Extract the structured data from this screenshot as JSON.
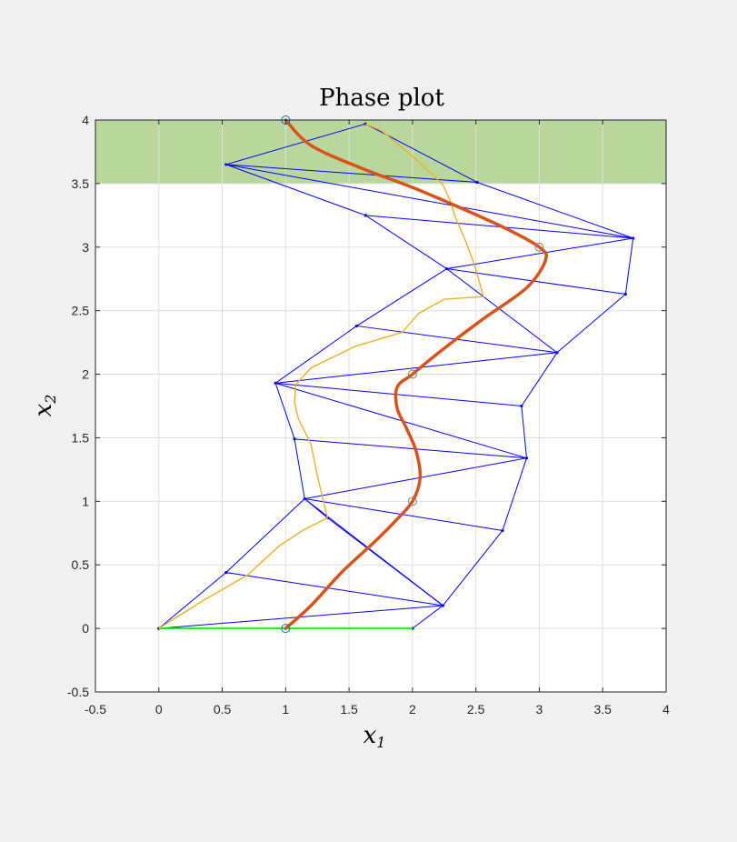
{
  "chart_data": {
    "type": "line",
    "title": "Phase plot",
    "xlabel": {
      "base": "x",
      "sub": "1"
    },
    "ylabel": {
      "base": "x",
      "sub": "2"
    },
    "xlim": [
      -0.5,
      4
    ],
    "ylim": [
      -0.5,
      4
    ],
    "xticks": [
      -0.5,
      0,
      0.5,
      1,
      1.5,
      2,
      2.5,
      3,
      3.5,
      4
    ],
    "yticks": [
      -0.5,
      0,
      0.5,
      1,
      1.5,
      2,
      2.5,
      3,
      3.5,
      4
    ],
    "xtick_labels": [
      "-0.5",
      "0",
      "0.5",
      "1",
      "1.5",
      "2",
      "2.5",
      "3",
      "3.5",
      "4"
    ],
    "ytick_labels": [
      "-0.5",
      "0",
      "0.5",
      "1",
      "1.5",
      "2",
      "2.5",
      "3",
      "3.5",
      "4"
    ],
    "grid": true,
    "colors": {
      "figure_bg": "#f0f0f0",
      "axes_bg": "#ffffff",
      "grid": "#dfdfdf",
      "region": "#b9d79a",
      "mesh": "#0000ff",
      "path": "#edb120",
      "trajectory": "#d95319",
      "segment": "#00ff00",
      "marker_start": "#0072bd",
      "marker_waypoint": "#7f7f7f"
    },
    "region": {
      "x": [
        -0.5,
        4
      ],
      "y": [
        3.5,
        4
      ]
    },
    "mesh_nodes": [
      [
        0,
        0
      ],
      [
        2,
        0
      ],
      [
        0.53,
        0.44
      ],
      [
        2.24,
        0.18
      ],
      [
        1.15,
        1.02
      ],
      [
        1.33,
        0.87
      ],
      [
        2.71,
        0.77
      ],
      [
        1.07,
        1.49
      ],
      [
        2.9,
        1.34
      ],
      [
        0.92,
        1.93
      ],
      [
        2.86,
        1.75
      ],
      [
        1.56,
        2.38
      ],
      [
        3.14,
        2.17
      ],
      [
        2.27,
        2.83
      ],
      [
        3.68,
        2.63
      ],
      [
        1.63,
        3.25
      ],
      [
        3.74,
        3.07
      ],
      [
        0.53,
        3.65
      ],
      [
        2.51,
        3.51
      ],
      [
        1.63,
        3.97
      ]
    ],
    "mesh_edges": [
      [
        0,
        1
      ],
      [
        0,
        2
      ],
      [
        0,
        3
      ],
      [
        1,
        3
      ],
      [
        2,
        3
      ],
      [
        2,
        4
      ],
      [
        3,
        4
      ],
      [
        3,
        5
      ],
      [
        3,
        6
      ],
      [
        4,
        5
      ],
      [
        4,
        6
      ],
      [
        4,
        7
      ],
      [
        4,
        8
      ],
      [
        7,
        8
      ],
      [
        6,
        8
      ],
      [
        7,
        9
      ],
      [
        8,
        9
      ],
      [
        9,
        10
      ],
      [
        8,
        10
      ],
      [
        9,
        12
      ],
      [
        10,
        12
      ],
      [
        9,
        11
      ],
      [
        11,
        12
      ],
      [
        11,
        13
      ],
      [
        12,
        13
      ],
      [
        12,
        14
      ],
      [
        13,
        14
      ],
      [
        13,
        16
      ],
      [
        14,
        16
      ],
      [
        15,
        16
      ],
      [
        13,
        15
      ],
      [
        16,
        17
      ],
      [
        16,
        18
      ],
      [
        17,
        18
      ],
      [
        17,
        15
      ],
      [
        17,
        19
      ],
      [
        18,
        19
      ]
    ],
    "path_series": [
      [
        0,
        0
      ],
      [
        0.35,
        0.22
      ],
      [
        0.7,
        0.42
      ],
      [
        0.95,
        0.65
      ],
      [
        1.15,
        0.78
      ],
      [
        1.33,
        0.87
      ],
      [
        1.25,
        1.2
      ],
      [
        1.2,
        1.45
      ],
      [
        1.1,
        1.65
      ],
      [
        1.07,
        1.78
      ],
      [
        1.08,
        1.92
      ],
      [
        1.2,
        2.05
      ],
      [
        1.55,
        2.22
      ],
      [
        1.92,
        2.33
      ],
      [
        2.05,
        2.48
      ],
      [
        2.25,
        2.59
      ],
      [
        2.56,
        2.61
      ],
      [
        2.49,
        2.86
      ],
      [
        2.41,
        3.07
      ],
      [
        2.34,
        3.23
      ],
      [
        2.3,
        3.36
      ],
      [
        2.24,
        3.49
      ],
      [
        2.18,
        3.55
      ],
      [
        1.96,
        3.75
      ],
      [
        1.75,
        3.92
      ],
      [
        1.63,
        3.97
      ]
    ],
    "trajectory": [
      [
        1,
        0
      ],
      [
        1.2,
        0.18
      ],
      [
        1.45,
        0.45
      ],
      [
        1.7,
        0.68
      ],
      [
        1.87,
        0.85
      ],
      [
        2,
        1
      ],
      [
        2.06,
        1.18
      ],
      [
        2.03,
        1.39
      ],
      [
        1.95,
        1.58
      ],
      [
        1.88,
        1.73
      ],
      [
        1.88,
        1.9
      ],
      [
        2,
        2
      ],
      [
        2.22,
        2.18
      ],
      [
        2.55,
        2.43
      ],
      [
        2.9,
        2.68
      ],
      [
        3.05,
        2.9
      ],
      [
        3,
        3
      ],
      [
        2.75,
        3.14
      ],
      [
        2.4,
        3.3
      ],
      [
        2,
        3.47
      ],
      [
        1.6,
        3.62
      ],
      [
        1.2,
        3.8
      ],
      [
        1,
        4
      ]
    ],
    "waypoints": [
      [
        1,
        0
      ],
      [
        2,
        1
      ],
      [
        2,
        2
      ],
      [
        3,
        3
      ],
      [
        1,
        4
      ]
    ],
    "segment": [
      [
        0,
        0
      ],
      [
        2,
        0
      ]
    ]
  }
}
